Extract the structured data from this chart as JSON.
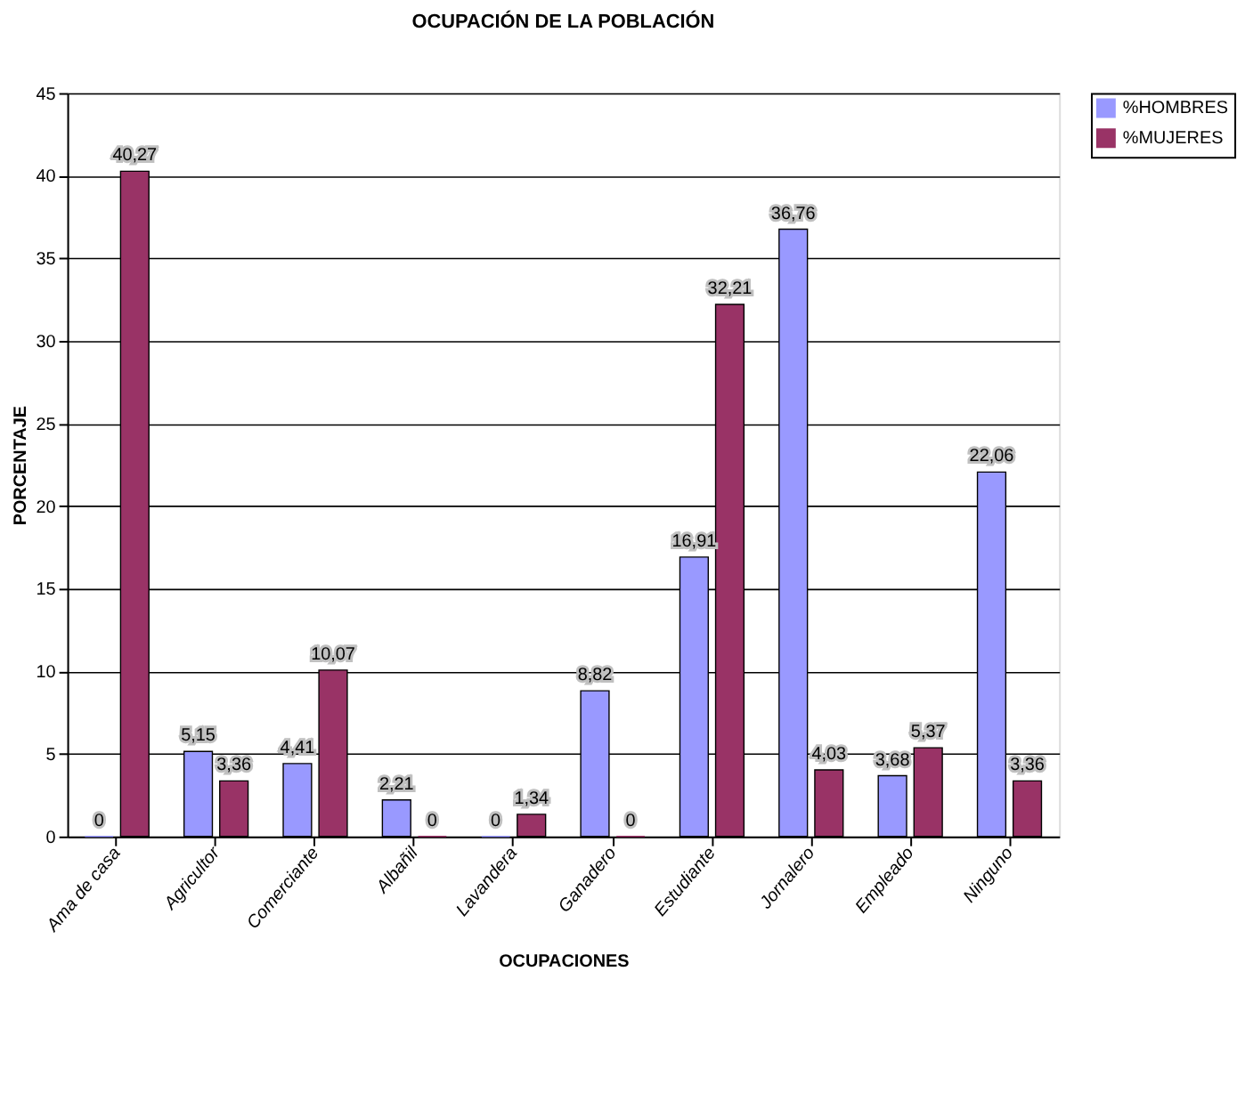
{
  "chart_data": {
    "type": "bar",
    "title": "OCUPACIÓN DE LA POBLACIÓN",
    "xlabel": "OCUPACIONES",
    "ylabel": "PORCENTAJE",
    "categories": [
      "Ama de casa",
      "Agricultor",
      "Comerciante",
      "Albañil",
      "Lavandera",
      "Ganadero",
      "Estudiante",
      "Jornalero",
      "Empleado",
      "Ninguno"
    ],
    "series": [
      {
        "name": "%HOMBRES",
        "color": "#9999ff",
        "values": [
          0,
          5.15,
          4.41,
          2.21,
          0,
          8.82,
          16.91,
          36.76,
          3.68,
          22.06
        ],
        "value_labels": [
          "0",
          "5,15",
          "4,41",
          "2,21",
          "0",
          "8,82",
          "16,91",
          "36,76",
          "3,68",
          "22,06"
        ]
      },
      {
        "name": "%MUJERES",
        "color": "#993366",
        "values": [
          40.27,
          3.36,
          10.07,
          0,
          1.34,
          0,
          32.21,
          4.03,
          5.37,
          3.36
        ],
        "value_labels": [
          "40,27",
          "3,36",
          "10,07",
          "0",
          "1,34",
          "0",
          "32,21",
          "4,03",
          "5,37",
          "3,36"
        ]
      }
    ],
    "ylim": [
      0,
      45
    ],
    "yticks": [
      0,
      5,
      10,
      15,
      20,
      25,
      30,
      35,
      40,
      45
    ],
    "grid": "y",
    "legend": "right"
  }
}
